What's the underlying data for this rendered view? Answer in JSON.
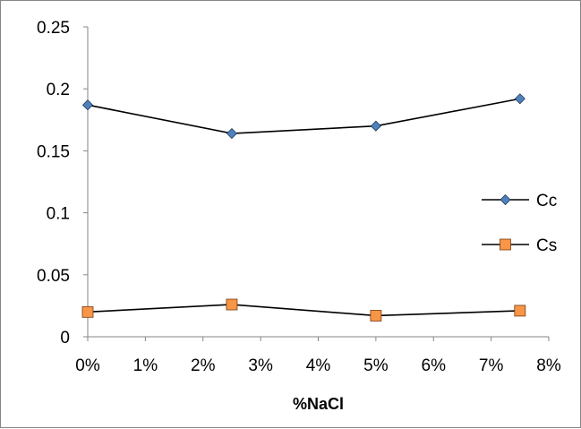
{
  "chart_data": {
    "type": "line",
    "title": "",
    "xlabel": "%NaCl",
    "ylabel": "",
    "x": [
      0,
      0.025,
      0.05,
      0.075
    ],
    "series": [
      {
        "name": "Cc",
        "values": [
          0.187,
          0.164,
          0.17,
          0.192
        ],
        "marker": "diamond",
        "color": "#4f81bd"
      },
      {
        "name": "Cs",
        "values": [
          0.02,
          0.026,
          0.017,
          0.021
        ],
        "marker": "square",
        "color": "#f79646"
      }
    ],
    "xlim": [
      0,
      0.08
    ],
    "ylim": [
      0,
      0.25
    ],
    "x_ticks": [
      "0%",
      "1%",
      "2%",
      "3%",
      "4%",
      "5%",
      "6%",
      "7%",
      "8%"
    ],
    "y_ticks": [
      "0",
      "0.05",
      "0.1",
      "0.15",
      "0.2",
      "0.25"
    ],
    "grid": false,
    "legend_position": "right",
    "line_color": "#000000"
  }
}
